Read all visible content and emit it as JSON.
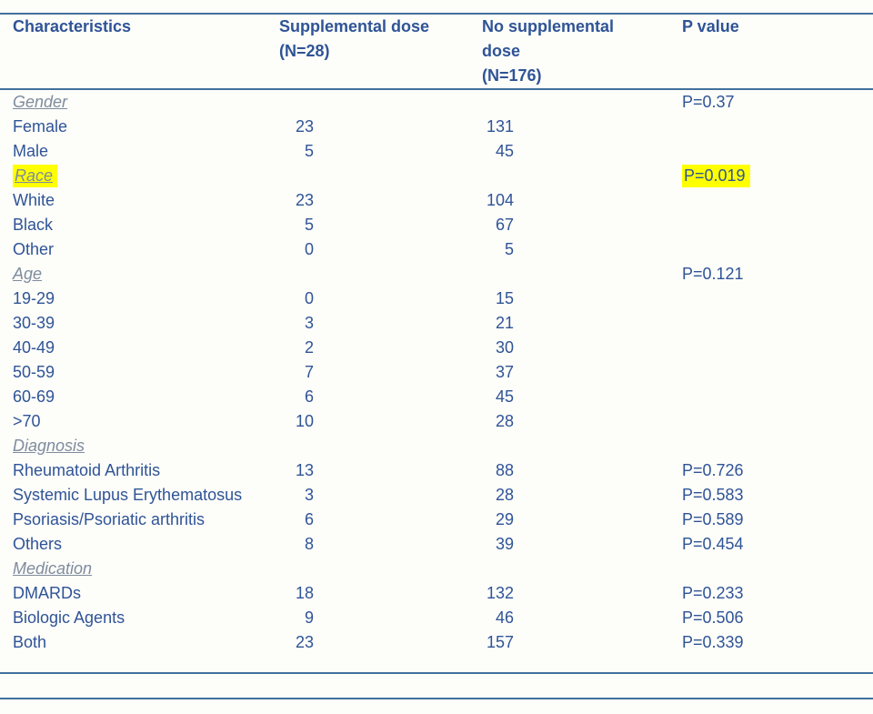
{
  "styles": {
    "text_color": "#2F5496",
    "section_label_color": "#7F8C9D",
    "rule_color": "#41719C",
    "highlight_color": "#FFFF00",
    "background_color": "#FDFDFA"
  },
  "table": {
    "header": {
      "characteristics": "Characteristics",
      "supplemental": "Supplemental dose\n(N=28)",
      "no_supplemental": "No supplemental\ndose\n(N=176)",
      "p_value": "P value"
    },
    "rows": [
      {
        "label": "Gender",
        "type": "section",
        "supp": "",
        "no_supp": "",
        "p_value": "P=0.37"
      },
      {
        "label": "Female",
        "type": "data",
        "supp": "23",
        "no_supp": "131",
        "p_value": ""
      },
      {
        "label": "Male",
        "type": "data",
        "supp": "5",
        "no_supp": "45",
        "p_value": ""
      },
      {
        "label": "Race",
        "type": "section",
        "supp": "",
        "no_supp": "",
        "p_value": "P=0.019",
        "highlight_label": true,
        "highlight_p": true
      },
      {
        "label": "White",
        "type": "data",
        "supp": "23",
        "no_supp": "104",
        "p_value": ""
      },
      {
        "label": "Black",
        "type": "data",
        "supp": "5",
        "no_supp": "67",
        "p_value": ""
      },
      {
        "label": "Other",
        "type": "data",
        "supp": "0",
        "no_supp": "5",
        "p_value": ""
      },
      {
        "label": "Age",
        "type": "section",
        "supp": "",
        "no_supp": "",
        "p_value": "P=0.121"
      },
      {
        "label": "19-29",
        "type": "data",
        "supp": "0",
        "no_supp": "15",
        "p_value": ""
      },
      {
        "label": "30-39",
        "type": "data",
        "supp": "3",
        "no_supp": "21",
        "p_value": ""
      },
      {
        "label": "40-49",
        "type": "data",
        "supp": "2",
        "no_supp": "30",
        "p_value": ""
      },
      {
        "label": "50-59",
        "type": "data",
        "supp": "7",
        "no_supp": "37",
        "p_value": ""
      },
      {
        "label": "60-69",
        "type": "data",
        "supp": "6",
        "no_supp": "45",
        "p_value": ""
      },
      {
        "label": ">70",
        "type": "data",
        "supp": "10",
        "no_supp": "28",
        "p_value": ""
      },
      {
        "label": "Diagnosis",
        "type": "section",
        "supp": "",
        "no_supp": "",
        "p_value": ""
      },
      {
        "label": "Rheumatoid Arthritis",
        "type": "data",
        "supp": "13",
        "no_supp": "88",
        "p_value": "P=0.726"
      },
      {
        "label": "Systemic Lupus Erythematosus",
        "type": "data",
        "supp": "3",
        "no_supp": "28",
        "p_value": "P=0.583"
      },
      {
        "label": "Psoriasis/Psoriatic arthritis",
        "type": "data",
        "supp": "6",
        "no_supp": "29",
        "p_value": "P=0.589"
      },
      {
        "label": "Others",
        "type": "data",
        "supp": "8",
        "no_supp": "39",
        "p_value": "P=0.454"
      },
      {
        "label": "Medication",
        "type": "section",
        "supp": "",
        "no_supp": "",
        "p_value": ""
      },
      {
        "label": "DMARDs",
        "type": "data",
        "supp": "18",
        "no_supp": "132",
        "p_value": "P=0.233"
      },
      {
        "label": "Biologic Agents",
        "type": "data",
        "supp": "9",
        "no_supp": "46",
        "p_value": "P=0.506"
      },
      {
        "label": "Both",
        "type": "data",
        "supp": "23",
        "no_supp": "157",
        "p_value": "P=0.339"
      }
    ]
  }
}
